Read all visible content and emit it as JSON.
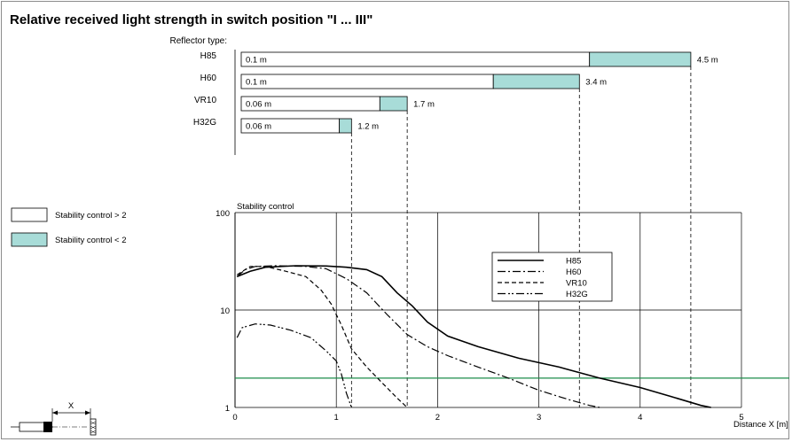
{
  "title": "Relative received light strength in switch position \"I ... III\"",
  "reflector_type_label": "Reflector type:",
  "legend_boxes": [
    {
      "label": "Stability control > 2",
      "color": "#ffffff"
    },
    {
      "label": "Stability control < 2",
      "color": "#a8dcd8"
    }
  ],
  "device_label": "X",
  "colors": {
    "stable": "#ffffff",
    "unstable": "#a8dcd8",
    "threshold": "#1d8c4a",
    "grid": "#000000"
  },
  "ranges": [
    {
      "name": "H85",
      "start_label": "0.1 m",
      "end_label": "4.5 m",
      "start": 0.1,
      "stable_end": 3.5,
      "end": 4.5
    },
    {
      "name": "H60",
      "start_label": "0.1 m",
      "end_label": "3.4 m",
      "start": 0.1,
      "stable_end": 2.55,
      "end": 3.4
    },
    {
      "name": "VR10",
      "start_label": "0.06 m",
      "end_label": "1.7 m",
      "start": 0.06,
      "stable_end": 1.43,
      "end": 1.7
    },
    {
      "name": "H32G",
      "start_label": "0.06 m",
      "end_label": "1.2 m",
      "start": 0.06,
      "stable_end": 1.03,
      "end": 1.15
    }
  ],
  "chart_data": {
    "type": "line",
    "ylabel": "Stability control",
    "xlabel": "Distance X [m]",
    "xlim": [
      0,
      5
    ],
    "ylim": [
      1,
      100
    ],
    "yscale": "log",
    "x_ticks": [
      "0",
      "1",
      "2",
      "3",
      "4",
      "5"
    ],
    "y_ticks": [
      "1",
      "10",
      "100"
    ],
    "threshold": 2,
    "grid": true,
    "legend_position": "inside-top-right",
    "series": [
      {
        "name": "H85",
        "style": "solid",
        "points": [
          [
            0.02,
            22
          ],
          [
            0.15,
            25
          ],
          [
            0.3,
            27.5
          ],
          [
            0.6,
            28.5
          ],
          [
            0.9,
            28.3
          ],
          [
            1.1,
            27.5
          ],
          [
            1.3,
            26
          ],
          [
            1.45,
            22
          ],
          [
            1.6,
            15
          ],
          [
            1.75,
            11
          ],
          [
            1.9,
            7.5
          ],
          [
            2.1,
            5.4
          ],
          [
            2.4,
            4.2
          ],
          [
            2.8,
            3.2
          ],
          [
            3.2,
            2.6
          ],
          [
            3.6,
            2.0
          ],
          [
            4.0,
            1.6
          ],
          [
            4.3,
            1.3
          ],
          [
            4.6,
            1.05
          ],
          [
            4.7,
            1.0
          ]
        ]
      },
      {
        "name": "H60",
        "style": "dashdot",
        "points": [
          [
            0.02,
            22
          ],
          [
            0.1,
            26
          ],
          [
            0.2,
            28
          ],
          [
            0.4,
            28.5
          ],
          [
            0.7,
            28
          ],
          [
            0.9,
            26.5
          ],
          [
            1.1,
            21
          ],
          [
            1.3,
            15
          ],
          [
            1.5,
            9
          ],
          [
            1.7,
            5.6
          ],
          [
            1.9,
            4.2
          ],
          [
            2.1,
            3.4
          ],
          [
            2.4,
            2.6
          ],
          [
            2.7,
            2.0
          ],
          [
            3.0,
            1.5
          ],
          [
            3.3,
            1.2
          ],
          [
            3.5,
            1.05
          ],
          [
            3.6,
            1.0
          ]
        ]
      },
      {
        "name": "VR10",
        "style": "dashed",
        "points": [
          [
            0.02,
            23
          ],
          [
            0.15,
            28
          ],
          [
            0.3,
            28
          ],
          [
            0.5,
            25
          ],
          [
            0.7,
            22
          ],
          [
            0.85,
            16
          ],
          [
            0.95,
            11.5
          ],
          [
            1.05,
            7
          ],
          [
            1.15,
            4
          ],
          [
            1.3,
            2.6
          ],
          [
            1.45,
            1.8
          ],
          [
            1.6,
            1.25
          ],
          [
            1.7,
            1.0
          ]
        ]
      },
      {
        "name": "H32G",
        "style": "dashdotdot",
        "points": [
          [
            0.02,
            5.2
          ],
          [
            0.07,
            6.6
          ],
          [
            0.2,
            7.2
          ],
          [
            0.35,
            7.0
          ],
          [
            0.55,
            6.2
          ],
          [
            0.75,
            5.2
          ],
          [
            0.9,
            3.8
          ],
          [
            1.0,
            3.0
          ],
          [
            1.05,
            2.2
          ],
          [
            1.1,
            1.4
          ],
          [
            1.15,
            1.0
          ]
        ]
      }
    ]
  }
}
